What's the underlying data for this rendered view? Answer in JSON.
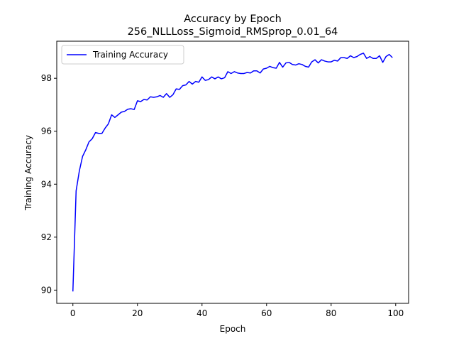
{
  "chart_data": {
    "type": "line",
    "title": "Accuracy by Epoch",
    "subtitle": "256_NLLLoss_Sigmoid_RMSprop_0.01_64",
    "xlabel": "Epoch",
    "ylabel": "Training Accuracy",
    "xlim": [
      -5,
      104
    ],
    "ylim": [
      89.5,
      99.4
    ],
    "xticks": [
      0,
      20,
      40,
      60,
      80,
      100
    ],
    "yticks": [
      90,
      92,
      94,
      96,
      98
    ],
    "grid": false,
    "legend_position": "upper-left",
    "series": [
      {
        "name": "Training Accuracy",
        "color": "#0000ff",
        "x": [
          0,
          1,
          2,
          3,
          4,
          5,
          6,
          7,
          8,
          9,
          10,
          11,
          12,
          13,
          14,
          15,
          16,
          17,
          18,
          19,
          20,
          21,
          22,
          23,
          24,
          25,
          26,
          27,
          28,
          29,
          30,
          31,
          32,
          33,
          34,
          35,
          36,
          37,
          38,
          39,
          40,
          41,
          42,
          43,
          44,
          45,
          46,
          47,
          48,
          49,
          50,
          51,
          52,
          53,
          54,
          55,
          56,
          57,
          58,
          59,
          60,
          61,
          62,
          63,
          64,
          65,
          66,
          67,
          68,
          69,
          70,
          71,
          72,
          73,
          74,
          75,
          76,
          77,
          78,
          79,
          80,
          81,
          82,
          83,
          84,
          85,
          86,
          87,
          88,
          89,
          90,
          91,
          92,
          93,
          94,
          95,
          96,
          97,
          98,
          99
        ],
        "values": [
          89.95,
          93.75,
          94.5,
          95.05,
          95.3,
          95.6,
          95.72,
          95.95,
          95.92,
          95.92,
          96.12,
          96.28,
          96.62,
          96.52,
          96.62,
          96.72,
          96.75,
          96.83,
          96.85,
          96.82,
          97.15,
          97.12,
          97.2,
          97.18,
          97.3,
          97.28,
          97.3,
          97.35,
          97.28,
          97.42,
          97.28,
          97.38,
          97.6,
          97.58,
          97.72,
          97.75,
          97.88,
          97.78,
          97.88,
          97.85,
          98.05,
          97.92,
          97.95,
          98.05,
          97.98,
          98.05,
          97.98,
          98.02,
          98.25,
          98.18,
          98.25,
          98.2,
          98.18,
          98.18,
          98.22,
          98.2,
          98.28,
          98.28,
          98.2,
          98.35,
          98.38,
          98.45,
          98.4,
          98.38,
          98.6,
          98.42,
          98.58,
          98.6,
          98.52,
          98.5,
          98.55,
          98.52,
          98.45,
          98.42,
          98.62,
          98.7,
          98.58,
          98.7,
          98.65,
          98.62,
          98.62,
          98.68,
          98.65,
          98.78,
          98.78,
          98.75,
          98.85,
          98.78,
          98.82,
          98.9,
          98.95,
          98.75,
          98.82,
          98.75,
          98.75,
          98.85,
          98.6,
          98.82,
          98.9,
          98.78
        ]
      }
    ]
  }
}
